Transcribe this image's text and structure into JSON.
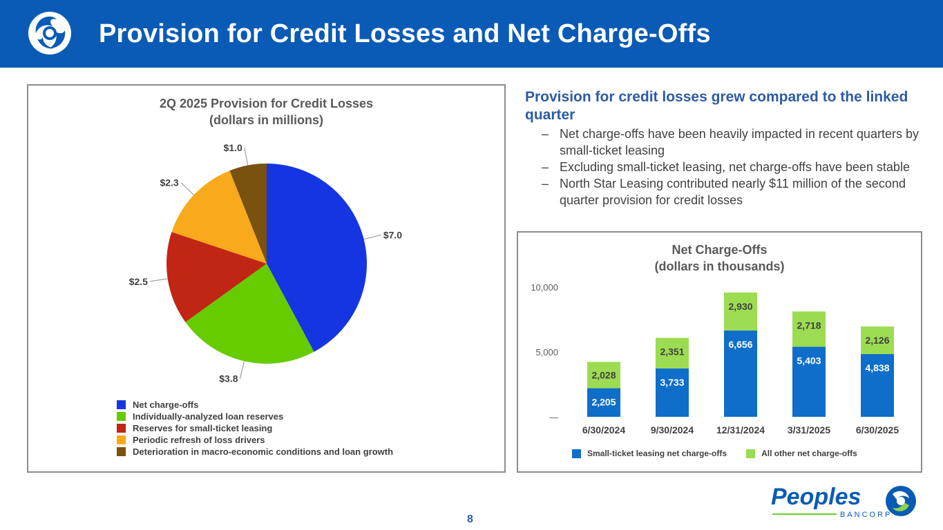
{
  "header": {
    "title": "Provision for Credit Losses and Net Charge-Offs"
  },
  "pie_panel": {
    "title_line1": "2Q 2025 Provision for Credit Losses",
    "title_line2": "(dollars in millions)"
  },
  "bar_panel": {
    "title_line1": "Net Charge-Offs",
    "title_line2": "(dollars in thousands)"
  },
  "bullets": {
    "heading": "Provision for credit losses grew compared to the linked quarter",
    "items": [
      "Net charge-offs have been heavily impacted in recent quarters by small-ticket leasing",
      "Excluding small-ticket leasing, net charge-offs have been stable",
      "North Star Leasing contributed nearly $11 million of the second quarter provision for credit losses"
    ],
    "dash": "–"
  },
  "chart_data": [
    {
      "type": "pie",
      "title": "2Q 2025 Provision for Credit Losses (dollars in millions)",
      "slices": [
        {
          "name": "Net charge-offs",
          "value": 7.0,
          "label": "$7.0",
          "color": "#1535e2"
        },
        {
          "name": "Individually-analyzed loan reserves",
          "value": 3.8,
          "label": "$3.8",
          "color": "#66cc00"
        },
        {
          "name": "Reserves for small-ticket leasing",
          "value": 2.5,
          "label": "$2.5",
          "color": "#c12514"
        },
        {
          "name": "Periodic refresh of loss drivers",
          "value": 2.3,
          "label": "$2.3",
          "color": "#f8aa1c"
        },
        {
          "name": "Deterioration in macro-economic conditions and loan growth",
          "value": 1.0,
          "label": "$1.0",
          "color": "#7a520f"
        }
      ]
    },
    {
      "type": "bar",
      "stacked": true,
      "title": "Net Charge-Offs (dollars in thousands)",
      "categories": [
        "6/30/2024",
        "9/30/2024",
        "12/31/2024",
        "3/31/2025",
        "6/30/2025"
      ],
      "series": [
        {
          "name": "Small-ticket leasing net charge-offs",
          "values": [
            2205,
            3733,
            6656,
            5403,
            4838
          ],
          "labels": [
            "2,205",
            "3,733",
            "6,656",
            "5,403",
            "4,838"
          ],
          "color": "#0e6ec9"
        },
        {
          "name": "All other net charge-offs",
          "values": [
            2028,
            2351,
            2930,
            2718,
            2126
          ],
          "labels": [
            "2,028",
            "2,351",
            "2,930",
            "2,718",
            "2,126"
          ],
          "color": "#9cdc52"
        }
      ],
      "ylim": [
        0,
        10000
      ],
      "yticks": [
        0,
        5000,
        10000
      ],
      "ytick_labels": [
        "—",
        "5,000",
        "10,000"
      ]
    }
  ],
  "footer": {
    "brand": "Peoples",
    "sub": "BANCORP",
    "page": "8"
  }
}
